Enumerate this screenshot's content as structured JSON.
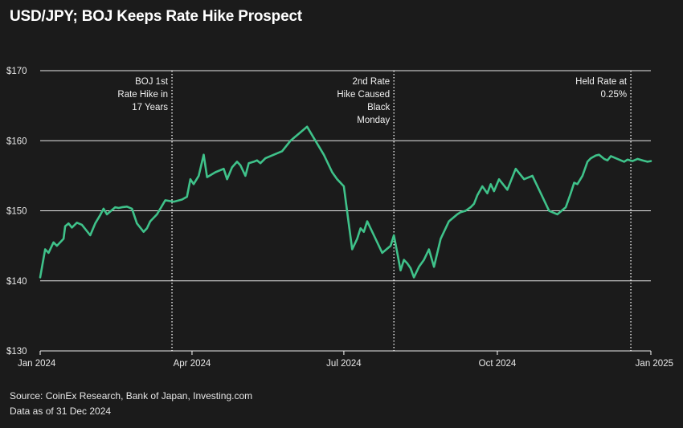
{
  "colors": {
    "background": "#1b1b1b",
    "line": "#3fc28a",
    "grid": "#ffffff",
    "text": "#f0f0f0"
  },
  "chart_data": {
    "type": "line",
    "title": "USD/JPY; BOJ Keeps Rate Hike Prospect",
    "xlabel": "",
    "ylabel": "",
    "ylim": [
      130,
      170
    ],
    "yticks": [
      130,
      140,
      150,
      160,
      170
    ],
    "ytick_labels": [
      "$130",
      "$140",
      "$150",
      "$160",
      "$170"
    ],
    "xlim": [
      0,
      366
    ],
    "xticks": [
      0,
      91,
      182,
      274,
      366
    ],
    "xtick_labels": [
      "Jan 2024",
      "Apr 2024",
      "Jul 2024",
      "Oct 2024",
      "Jan 2025"
    ],
    "series": [
      {
        "name": "USD/JPY",
        "x": [
          0,
          3,
          5,
          8,
          10,
          14,
          15,
          17,
          19,
          22,
          25,
          30,
          33,
          36,
          38,
          40,
          45,
          47,
          49,
          52,
          55,
          58,
          62,
          64,
          66,
          70,
          75,
          80,
          85,
          88,
          90,
          92,
          95,
          98,
          100,
          105,
          110,
          112,
          115,
          118,
          120,
          122,
          123,
          125,
          128,
          130,
          132,
          135,
          140,
          145,
          150,
          155,
          160,
          165,
          170,
          175,
          178,
          182,
          185,
          187,
          190,
          192,
          194,
          196,
          200,
          205,
          210,
          212,
          214,
          216,
          218,
          220,
          222,
          224,
          227,
          230,
          233,
          236,
          240,
          245,
          250,
          252,
          255,
          258,
          260,
          262,
          265,
          268,
          270,
          272,
          275,
          280,
          285,
          290,
          295,
          297,
          300,
          305,
          310,
          315,
          318,
          320,
          322,
          325,
          328,
          330,
          333,
          335,
          338,
          340,
          342,
          345,
          348,
          350,
          352,
          355,
          358,
          361,
          364,
          366
        ],
        "values": [
          140.5,
          144.5,
          144.0,
          145.5,
          145.0,
          146.0,
          147.8,
          148.2,
          147.6,
          148.3,
          148.0,
          146.5,
          148.2,
          149.4,
          150.3,
          149.5,
          150.5,
          150.4,
          150.5,
          150.6,
          150.3,
          148.2,
          147.0,
          147.5,
          148.5,
          149.5,
          151.5,
          151.3,
          151.6,
          152.0,
          154.5,
          153.8,
          155.0,
          158.0,
          154.8,
          155.5,
          156.0,
          154.5,
          156.2,
          157.0,
          156.5,
          155.5,
          155.0,
          156.8,
          157.0,
          157.2,
          156.8,
          157.5,
          158.0,
          158.5,
          160.0,
          161.0,
          162.0,
          160.0,
          158.0,
          155.5,
          154.5,
          153.5,
          148.0,
          144.5,
          146.0,
          147.5,
          147.0,
          148.5,
          146.5,
          144.0,
          145.0,
          146.5,
          144.0,
          141.5,
          143.0,
          142.5,
          141.8,
          140.5,
          142.0,
          143.0,
          144.5,
          142.0,
          146.0,
          148.5,
          149.5,
          149.8,
          150.0,
          150.5,
          151.0,
          152.2,
          153.5,
          152.5,
          153.8,
          152.8,
          154.5,
          153.0,
          156.0,
          154.5,
          155.0,
          154.0,
          152.5,
          150.0,
          149.5,
          150.5,
          152.5,
          154.0,
          153.8,
          155.0,
          157.0,
          157.5,
          157.9,
          158.0,
          157.4,
          157.2,
          157.8,
          157.5,
          157.2,
          157.0,
          157.3,
          157.1,
          157.4,
          157.2,
          157.0,
          157.1
        ]
      }
    ],
    "annotations": [
      {
        "x": 79,
        "lines": [
          "BOJ 1st",
          "Rate Hike in",
          "17 Years"
        ]
      },
      {
        "x": 212,
        "lines": [
          "2nd Rate",
          "Hike Caused",
          "Black",
          "Monday"
        ]
      },
      {
        "x": 354,
        "lines": [
          "Held Rate at",
          "0.25%"
        ]
      }
    ]
  },
  "footer": {
    "source": "Source: CoinEx Research, Bank of Japan, Investing.com",
    "as_of": "Data as of 31 Dec 2024"
  }
}
